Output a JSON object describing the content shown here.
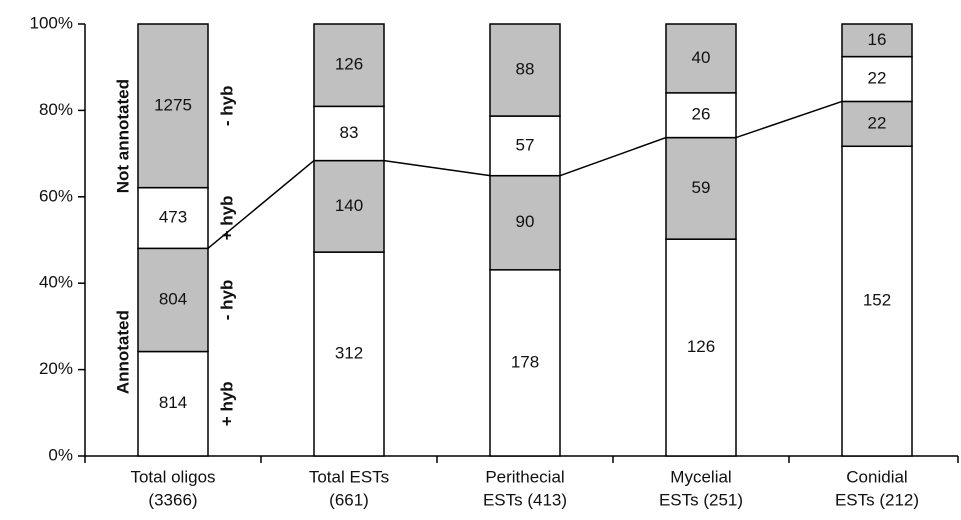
{
  "chart_data": {
    "type": "bar",
    "stacking": "percent",
    "categories": [
      [
        "Total oligos",
        "(3366)"
      ],
      [
        "Total ESTs",
        "(661)"
      ],
      [
        "Perithecial",
        "ESTs (413)"
      ],
      [
        "Mycelial",
        "ESTs (251)"
      ],
      [
        "Conidial",
        "ESTs (212)"
      ]
    ],
    "series": [
      {
        "name": "+ hyb",
        "color": "#ffffff",
        "values": [
          814,
          312,
          178,
          126,
          152
        ]
      },
      {
        "name": "- hyb",
        "color": "#c0c0c0",
        "values": [
          804,
          140,
          90,
          59,
          22
        ]
      },
      {
        "name": "+ hyb",
        "color": "#ffffff",
        "values": [
          473,
          83,
          57,
          26,
          22
        ]
      },
      {
        "name": "- hyb",
        "color": "#c0c0c0",
        "values": [
          1275,
          126,
          88,
          40,
          16
        ]
      }
    ],
    "annotations": [
      "Annotated",
      "Not annotated"
    ],
    "ylim": [
      0,
      100
    ],
    "yticks": [
      {
        "value": 0,
        "label": "0%"
      },
      {
        "value": 20,
        "label": "20%"
      },
      {
        "value": 40,
        "label": "40%"
      },
      {
        "value": 60,
        "label": "60%"
      },
      {
        "value": 80,
        "label": "80%"
      },
      {
        "value": 100,
        "label": "100%"
      }
    ]
  }
}
